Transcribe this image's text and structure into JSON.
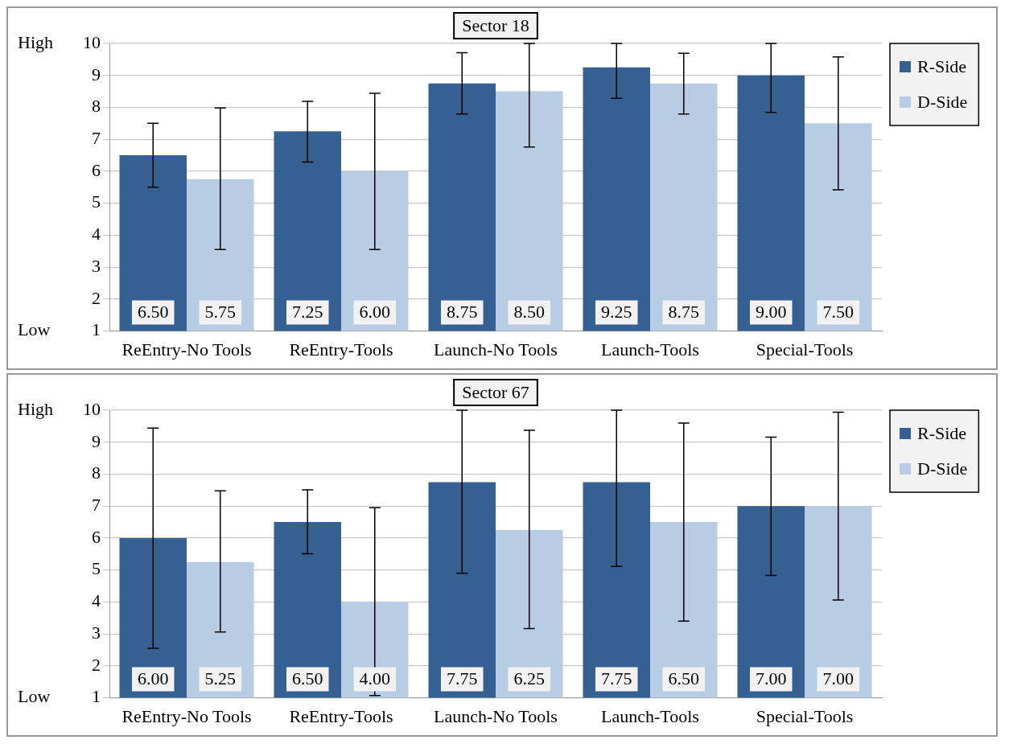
{
  "chart_data": [
    {
      "type": "bar",
      "title": "Sector 18",
      "categories": [
        "ReEntry-No Tools",
        "ReEntry-Tools",
        "Launch-No Tools",
        "Launch-Tools",
        "Special-Tools"
      ],
      "series": [
        {
          "name": "R-Side",
          "color": "#366092",
          "values": [
            6.5,
            7.25,
            8.75,
            9.25,
            9.0
          ],
          "value_labels": [
            "6.50",
            "7.25",
            "8.75",
            "9.25",
            "9.00"
          ],
          "errors": [
            [
              5.5,
              7.5
            ],
            [
              6.29,
              8.19
            ],
            [
              7.79,
              9.71
            ],
            [
              8.28,
              10
            ],
            [
              7.84,
              10
            ]
          ]
        },
        {
          "name": "D-Side",
          "color": "#b8cce4",
          "values": [
            5.75,
            6.0,
            8.5,
            8.75,
            7.5
          ],
          "value_labels": [
            "5.75",
            "6.00",
            "8.50",
            "8.75",
            "7.50"
          ],
          "errors": [
            [
              3.55,
              7.98
            ],
            [
              3.55,
              8.44
            ],
            [
              6.76,
              10
            ],
            [
              7.79,
              9.69
            ],
            [
              5.42,
              9.58
            ]
          ]
        }
      ],
      "ylim": [
        1,
        10
      ],
      "yticks": [
        1,
        2,
        3,
        4,
        5,
        6,
        7,
        8,
        9,
        10
      ],
      "grid": "y",
      "legend": "top right",
      "annotations": [
        "High",
        "Low"
      ]
    },
    {
      "type": "bar",
      "title": "Sector 67",
      "categories": [
        "ReEntry-No Tools",
        "ReEntry-Tools",
        "Launch-No Tools",
        "Launch-Tools",
        "Special-Tools"
      ],
      "series": [
        {
          "name": "R-Side",
          "color": "#366092",
          "values": [
            6.0,
            6.5,
            7.75,
            7.75,
            7.0
          ],
          "value_labels": [
            "6.00",
            "6.50",
            "7.75",
            "7.75",
            "7.00"
          ],
          "errors": [
            [
              2.55,
              9.44
            ],
            [
              5.51,
              7.51
            ],
            [
              4.9,
              10
            ],
            [
              5.11,
              10
            ],
            [
              4.83,
              9.16
            ]
          ]
        },
        {
          "name": "D-Side",
          "color": "#b8cce4",
          "values": [
            5.25,
            4.0,
            6.25,
            6.5,
            7.0
          ],
          "value_labels": [
            "5.25",
            "4.00",
            "6.25",
            "6.50",
            "7.00"
          ],
          "errors": [
            [
              3.06,
              7.48
            ],
            [
              1.07,
              6.95
            ],
            [
              3.17,
              9.37
            ],
            [
              3.4,
              9.6
            ],
            [
              4.06,
              9.94
            ]
          ]
        }
      ],
      "ylim": [
        1,
        10
      ],
      "yticks": [
        1,
        2,
        3,
        4,
        5,
        6,
        7,
        8,
        9,
        10
      ],
      "grid": "y",
      "legend": "top right",
      "annotations": [
        "High",
        "Low"
      ]
    }
  ]
}
